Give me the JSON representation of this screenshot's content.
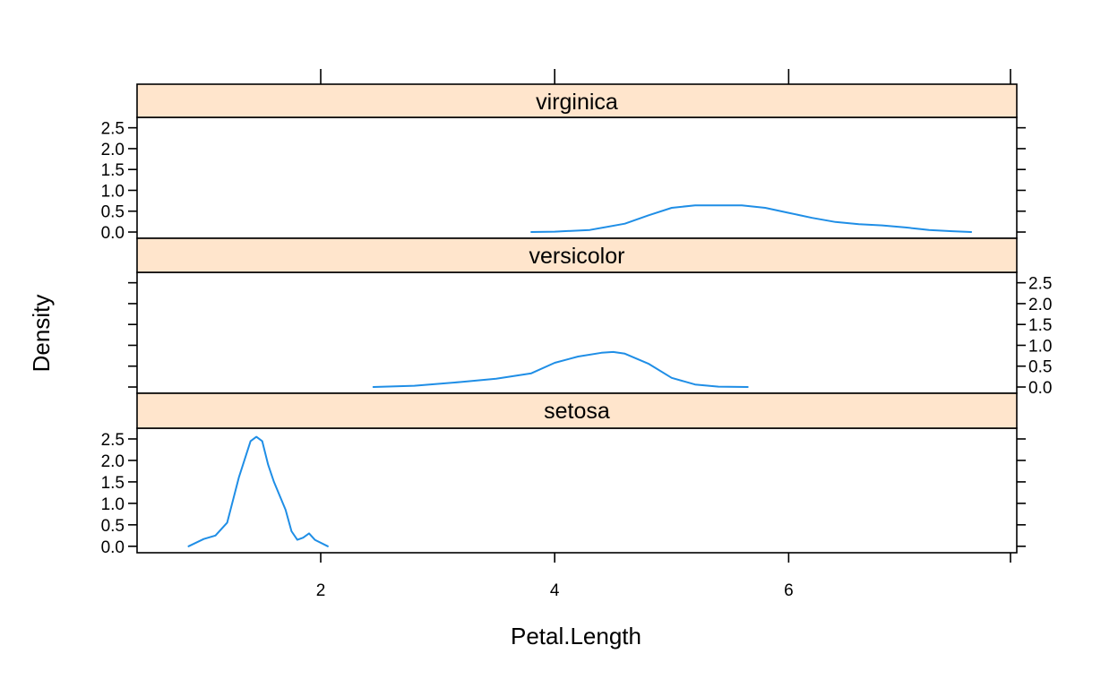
{
  "chart_data": {
    "type": "line",
    "xlabel": "Petal.Length",
    "ylabel": "Density",
    "xlim": [
      0.43,
      7.95
    ],
    "ylim": [
      -0.15,
      2.75
    ],
    "x_ticks": [
      2,
      4,
      6
    ],
    "y_ticks": [
      0.0,
      0.5,
      1.0,
      1.5,
      2.0,
      2.5
    ],
    "y_tick_labels": [
      "0.0",
      "0.5",
      "1.0",
      "1.5",
      "2.0",
      "2.5"
    ],
    "grid": false,
    "legend": "none",
    "colors": {
      "line": "#1f8ee6",
      "strip": "#ffe5cc",
      "frame": "#000000"
    },
    "panels": [
      {
        "strip": "virginica",
        "y_axis_side": "left",
        "x": [
          3.8,
          4.0,
          4.3,
          4.6,
          4.8,
          5.0,
          5.2,
          5.4,
          5.6,
          5.8,
          6.0,
          6.2,
          6.4,
          6.6,
          6.8,
          7.0,
          7.2,
          7.4,
          7.56
        ],
        "y": [
          0.0,
          0.01,
          0.05,
          0.2,
          0.4,
          0.58,
          0.64,
          0.64,
          0.64,
          0.58,
          0.46,
          0.34,
          0.24,
          0.19,
          0.16,
          0.11,
          0.05,
          0.02,
          0.0
        ]
      },
      {
        "strip": "versicolor",
        "y_axis_side": "right",
        "x": [
          2.45,
          2.8,
          3.2,
          3.5,
          3.8,
          4.0,
          4.2,
          4.4,
          4.5,
          4.6,
          4.8,
          5.0,
          5.2,
          5.4,
          5.65
        ],
        "y": [
          0.0,
          0.03,
          0.12,
          0.2,
          0.33,
          0.58,
          0.73,
          0.82,
          0.84,
          0.8,
          0.56,
          0.22,
          0.06,
          0.01,
          0.0
        ]
      },
      {
        "strip": "setosa",
        "y_axis_side": "left",
        "x": [
          0.87,
          1.0,
          1.1,
          1.2,
          1.3,
          1.4,
          1.45,
          1.5,
          1.55,
          1.6,
          1.7,
          1.75,
          1.8,
          1.85,
          1.9,
          1.95,
          2.06
        ],
        "y": [
          0.0,
          0.17,
          0.25,
          0.55,
          1.6,
          2.45,
          2.55,
          2.45,
          1.9,
          1.5,
          0.85,
          0.35,
          0.15,
          0.2,
          0.3,
          0.15,
          0.0
        ]
      }
    ]
  }
}
